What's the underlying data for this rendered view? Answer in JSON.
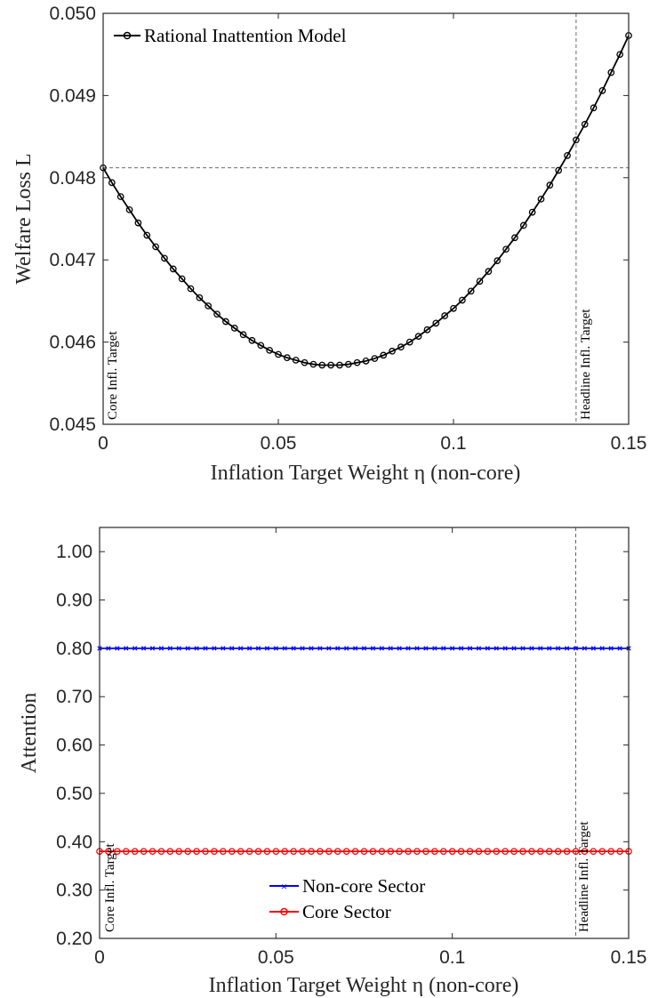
{
  "chart_data": [
    {
      "type": "line",
      "title": "",
      "xlabel": "Inflation Target Weight η (non-core)",
      "ylabel": "Welfare Loss L",
      "xlim": [
        0,
        0.15
      ],
      "ylim": [
        0.045,
        0.05
      ],
      "xticks": [
        0,
        0.05,
        0.1,
        0.15
      ],
      "xtick_labels": [
        "0",
        "0.05",
        "0.1",
        "0.15"
      ],
      "yticks": [
        0.045,
        0.046,
        0.047,
        0.048,
        0.049,
        0.05
      ],
      "ytick_labels": [
        "0.045",
        "0.046",
        "0.047",
        "0.048",
        "0.049",
        "0.050"
      ],
      "grid": false,
      "legend": "top-left",
      "series": [
        {
          "name": "Rational Inattention Model",
          "color": "#000000",
          "marker": "circle",
          "x": [
            0,
            0.0025,
            0.005,
            0.0075,
            0.01,
            0.0125,
            0.015,
            0.0175,
            0.02,
            0.0225,
            0.025,
            0.0275,
            0.03,
            0.0325,
            0.035,
            0.0375,
            0.04,
            0.0425,
            0.045,
            0.0475,
            0.05,
            0.0525,
            0.055,
            0.0575,
            0.06,
            0.0625,
            0.065,
            0.0675,
            0.07,
            0.0725,
            0.075,
            0.0775,
            0.08,
            0.0825,
            0.085,
            0.0875,
            0.09,
            0.0925,
            0.095,
            0.0975,
            0.1,
            0.1025,
            0.105,
            0.1075,
            0.11,
            0.1125,
            0.115,
            0.1175,
            0.12,
            0.1225,
            0.125,
            0.1275,
            0.13,
            0.1325,
            0.135,
            0.1375,
            0.14,
            0.1425,
            0.145,
            0.1475,
            0.15
          ],
          "y": [
            0.04812,
            0.04794,
            0.04777,
            0.04761,
            0.04745,
            0.0473,
            0.04716,
            0.04702,
            0.04689,
            0.04677,
            0.04665,
            0.04654,
            0.04644,
            0.04634,
            0.04625,
            0.04617,
            0.04609,
            0.04602,
            0.04596,
            0.0459,
            0.04585,
            0.04581,
            0.04578,
            0.04575,
            0.04573,
            0.04572,
            0.04572,
            0.04572,
            0.04573,
            0.04575,
            0.04577,
            0.0458,
            0.04584,
            0.04589,
            0.04594,
            0.046,
            0.04607,
            0.04615,
            0.04623,
            0.04632,
            0.04641,
            0.04651,
            0.04662,
            0.04674,
            0.04686,
            0.04699,
            0.04713,
            0.04727,
            0.04742,
            0.04758,
            0.04774,
            0.04791,
            0.04809,
            0.04827,
            0.04846,
            0.04865,
            0.04885,
            0.04906,
            0.04928,
            0.0495,
            0.04973
          ]
        }
      ],
      "reference_lines": [
        {
          "orientation": "vertical",
          "x": 0.135,
          "style": "dashed",
          "label": "Headline Infl. Target"
        },
        {
          "orientation": "horizontal",
          "y": 0.04812,
          "style": "dashed"
        },
        {
          "orientation": "vertical",
          "x": 0,
          "style": "dashed",
          "label": "Core Infl. Target"
        }
      ]
    },
    {
      "type": "line",
      "title": "",
      "xlabel": "Inflation Target Weight η (non-core)",
      "ylabel": "Attention",
      "xlim": [
        0,
        0.15
      ],
      "ylim": [
        0.2,
        1.05
      ],
      "xticks": [
        0,
        0.05,
        0.1,
        0.15
      ],
      "xtick_labels": [
        "0",
        "0.05",
        "0.1",
        "0.15"
      ],
      "yticks": [
        0.2,
        0.3,
        0.4,
        0.5,
        0.6,
        0.7,
        0.8,
        0.9,
        1.0
      ],
      "ytick_labels": [
        "0.20",
        "0.30",
        "0.40",
        "0.50",
        "0.60",
        "0.70",
        "0.80",
        "0.90",
        "1.00"
      ],
      "grid": false,
      "legend": "bottom-center",
      "series": [
        {
          "name": "Non-core Sector",
          "color": "#0000ff",
          "marker": "x",
          "constant_y": 0.8
        },
        {
          "name": "Core Sector",
          "color": "#ff0000",
          "marker": "circle",
          "constant_y": 0.38
        }
      ],
      "reference_lines": [
        {
          "orientation": "vertical",
          "x": 0.135,
          "style": "dashed",
          "label": "Headline Infl. Target"
        },
        {
          "orientation": "vertical",
          "x": 0,
          "style": "dashed",
          "label": "Core Infl. Target"
        }
      ]
    }
  ]
}
